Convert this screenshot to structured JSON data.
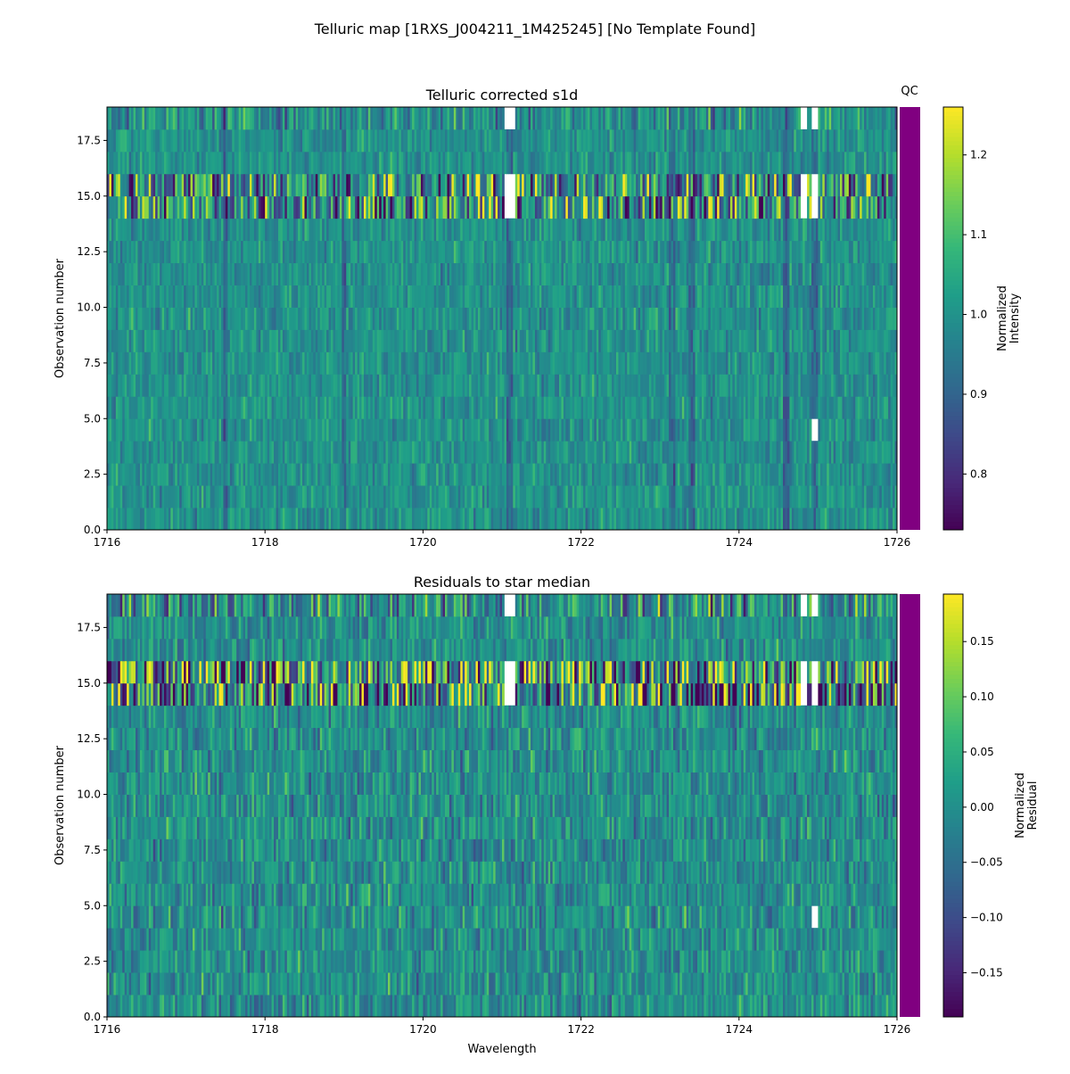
{
  "figure": {
    "title": "Telluric map [1RXS_J004211_1M425245] [No Template Found]"
  },
  "qc_label": "QC",
  "qc_color": "#800080",
  "chart_data": [
    {
      "type": "heatmap",
      "title": "Telluric corrected s1d",
      "xlabel": "",
      "ylabel": "Observation number",
      "xlim": [
        1716,
        1726
      ],
      "ylim": [
        0,
        19
      ],
      "xticks": [
        "1716",
        "1718",
        "1720",
        "1722",
        "1724",
        "1726"
      ],
      "yticks": [
        "0.0",
        "2.5",
        "5.0",
        "7.5",
        "10.0",
        "12.5",
        "15.0",
        "17.5"
      ],
      "colormap": "viridis",
      "colorbar": {
        "label": "Normalized\nIntensity",
        "label_lines": [
          "Normalized",
          "Intensity"
        ],
        "range": [
          0.73,
          1.26
        ],
        "ticks": [
          "0.8",
          "0.9",
          "1.0",
          "1.1",
          "1.2"
        ],
        "tick_values": [
          0.8,
          0.9,
          1.0,
          1.1,
          1.2
        ]
      },
      "center": 1.0,
      "noise_level": 0.04,
      "noisy_rows": [
        14,
        15,
        18
      ],
      "dark_lines_wavelength": [
        1717.5,
        1719.0,
        1721.1,
        1723.15,
        1723.4,
        1724.6,
        1724.95
      ],
      "missing_regions": [
        {
          "x": [
            1721.05,
            1721.15
          ],
          "rows": [
            14,
            15,
            18
          ]
        },
        {
          "x": [
            1724.8,
            1724.85
          ],
          "rows": [
            14,
            15,
            18
          ]
        },
        {
          "x": [
            1724.93,
            1724.97
          ],
          "rows": [
            4,
            14,
            15,
            18
          ]
        }
      ]
    },
    {
      "type": "heatmap",
      "title": "Residuals to star median",
      "xlabel": "Wavelength",
      "ylabel": "Observation number",
      "xlim": [
        1716,
        1726
      ],
      "ylim": [
        0,
        19
      ],
      "xticks": [
        "1716",
        "1718",
        "1720",
        "1722",
        "1724",
        "1726"
      ],
      "yticks": [
        "0.0",
        "2.5",
        "5.0",
        "7.5",
        "10.0",
        "12.5",
        "15.0",
        "17.5"
      ],
      "colormap": "viridis",
      "colorbar": {
        "label": "Normalized\nResidual",
        "label_lines": [
          "Normalized",
          "Residual"
        ],
        "range": [
          -0.19,
          0.193
        ],
        "ticks": [
          "−0.15",
          "−0.10",
          "−0.05",
          "0.00",
          "0.05",
          "0.10",
          "0.15"
        ],
        "tick_values": [
          -0.15,
          -0.1,
          -0.05,
          0.0,
          0.05,
          0.1,
          0.15
        ]
      },
      "center": 0.0,
      "noise_level": 0.04,
      "noisy_rows": [
        14,
        15,
        18
      ],
      "dark_lines_wavelength": [],
      "missing_regions": [
        {
          "x": [
            1721.05,
            1721.15
          ],
          "rows": [
            14,
            15,
            18
          ]
        },
        {
          "x": [
            1724.8,
            1724.85
          ],
          "rows": [
            14,
            15,
            18
          ]
        },
        {
          "x": [
            1724.93,
            1724.97
          ],
          "rows": [
            4,
            14,
            15,
            18
          ]
        }
      ]
    }
  ]
}
